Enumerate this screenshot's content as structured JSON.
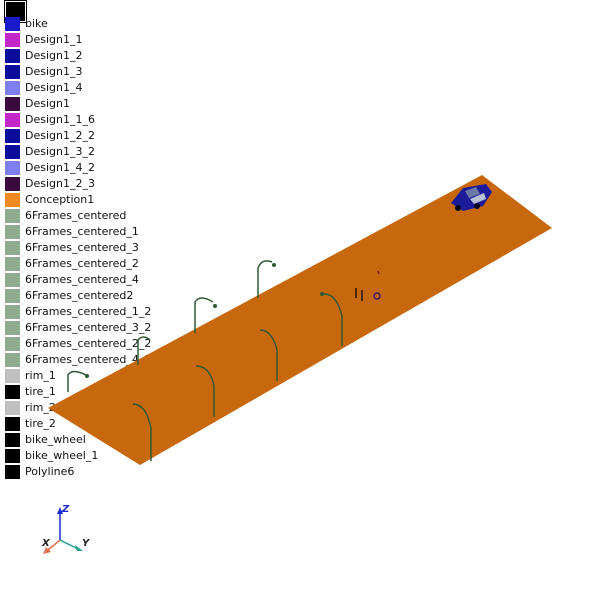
{
  "legend": {
    "items": [
      {
        "label": "bike",
        "color": "#1a1acc"
      },
      {
        "label": "Design1_1",
        "color": "#c228c8"
      },
      {
        "label": "Design1_2",
        "color": "#0c0c9c"
      },
      {
        "label": "Design1_3",
        "color": "#0c0c9c"
      },
      {
        "label": "Design1_4",
        "color": "#7e7ef0"
      },
      {
        "label": "Design1",
        "color": "#3a0a3e"
      },
      {
        "label": "Design1_1_6",
        "color": "#c228c8"
      },
      {
        "label": "Design1_2_2",
        "color": "#0c0c9c"
      },
      {
        "label": "Design1_3_2",
        "color": "#0c0c9c"
      },
      {
        "label": "Design1_4_2",
        "color": "#7e7ef0"
      },
      {
        "label": "Design1_2_3",
        "color": "#3a0a3e"
      },
      {
        "label": "Conception1",
        "color": "#f08a1e"
      },
      {
        "label": "6Frames_centered",
        "color": "#8fab8f"
      },
      {
        "label": "6Frames_centered_1",
        "color": "#8fab8f"
      },
      {
        "label": "6Frames_centered_3",
        "color": "#8fab8f"
      },
      {
        "label": "6Frames_centered_2",
        "color": "#8fab8f"
      },
      {
        "label": "6Frames_centered_4",
        "color": "#8fab8f"
      },
      {
        "label": "6Frames_centered2",
        "color": "#8fab8f"
      },
      {
        "label": "6Frames_centered_1_2",
        "color": "#8fab8f"
      },
      {
        "label": "6Frames_centered_3_2",
        "color": "#8fab8f"
      },
      {
        "label": "6Frames_centered_2_2",
        "color": "#8fab8f"
      },
      {
        "label": "6Frames_centered_4_2",
        "color": "#8fab8f"
      },
      {
        "label": "rim_1",
        "color": "#c0c0c0"
      },
      {
        "label": "tire_1",
        "color": "#000000"
      },
      {
        "label": "rim_2",
        "color": "#c0c0c0"
      },
      {
        "label": "tire_2",
        "color": "#000000"
      },
      {
        "label": "bike_wheel",
        "color": "#000000"
      },
      {
        "label": "bike_wheel_1",
        "color": "#000000"
      },
      {
        "label": "Polyline6",
        "color": "#000000"
      }
    ]
  },
  "scene": {
    "ground_color": "#c8680c",
    "pole_color": "#2f5a34",
    "car_color": "#1c1c9a"
  },
  "axes": {
    "x_label": "X",
    "y_label": "Y",
    "z_label": "Z",
    "x_color": "#e07050",
    "y_color": "#20a090",
    "z_color": "#1a2ad0"
  }
}
